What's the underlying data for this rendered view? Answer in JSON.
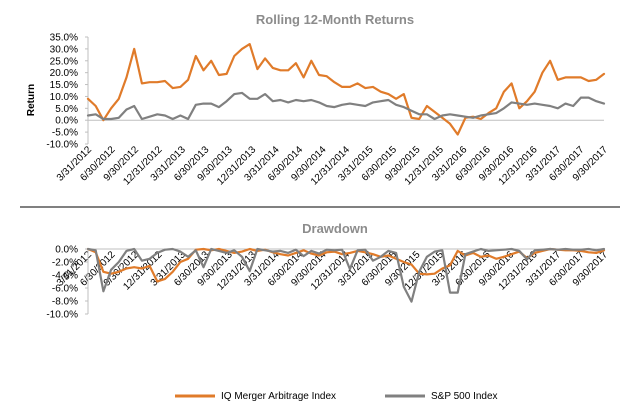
{
  "chart_data": [
    {
      "type": "line",
      "title": "Rolling 12-Month Returns",
      "ylabel": "Return",
      "ylim": [
        -10,
        35
      ],
      "yticks": [
        "35.0%",
        "30.0%",
        "25.0%",
        "20.0%",
        "15.0%",
        "10.0%",
        "5.0%",
        "0.0%",
        "-5.0%",
        "-10.0%"
      ],
      "ytick_values": [
        35,
        30,
        25,
        20,
        15,
        10,
        5,
        0,
        -5,
        -10
      ],
      "x_tick_labels": [
        "3/31/2012",
        "6/30/2012",
        "9/30/2012",
        "12/31/2012",
        "3/31/2013",
        "6/30/2013",
        "9/30/2013",
        "12/31/2013",
        "3/31/2014",
        "6/30/2014",
        "9/30/2014",
        "12/31/2014",
        "3/31/2015",
        "6/30/2015",
        "9/30/2015",
        "12/31/2015",
        "3/31/2016",
        "6/30/2016",
        "9/30/2016",
        "12/31/2016",
        "3/31/2017",
        "6/30/2017",
        "9/30/2017"
      ],
      "series": [
        {
          "name": "IQ Merger Arbitrage Index",
          "color": "#e07b2a",
          "values": [
            9,
            6,
            0,
            5,
            9,
            18,
            30,
            15.5,
            16,
            16,
            16.5,
            13.5,
            14,
            17,
            27,
            21,
            25,
            19,
            19.5,
            27,
            30,
            32,
            21.5,
            26,
            22,
            21,
            21,
            24,
            18,
            25,
            19,
            18.5,
            16,
            14,
            14,
            15.5,
            13.5,
            14,
            12,
            11,
            9,
            11,
            1,
            0.5,
            6,
            3.5,
            1,
            -1.5,
            -6,
            1,
            1.5,
            0.5,
            3,
            5,
            12,
            15.5,
            5,
            8,
            12,
            20,
            25,
            17,
            18,
            18,
            18,
            16.5,
            17,
            19.5
          ]
        },
        {
          "name": "S&P 500 Index",
          "color": "#808080",
          "values": [
            2,
            2.5,
            0.5,
            0.5,
            1,
            4.5,
            6,
            0.5,
            1.5,
            2.5,
            2,
            0.5,
            2,
            0.5,
            6.5,
            7,
            7,
            5.5,
            8,
            11,
            11.5,
            9,
            9,
            11,
            8,
            8.5,
            7.5,
            8.5,
            8,
            8.5,
            7.5,
            6,
            5.5,
            6.5,
            7,
            6.5,
            6,
            7.5,
            8,
            8.5,
            6.5,
            5.5,
            4,
            2.5,
            2.5,
            0.5,
            2,
            2.5,
            2,
            1.5,
            1,
            2,
            2.5,
            3,
            5,
            7.5,
            7,
            6.5,
            7,
            6.5,
            6,
            5,
            7,
            6,
            9.5,
            9.5,
            8,
            7
          ]
        }
      ]
    },
    {
      "type": "line",
      "title": "Drawdown",
      "ylim": [
        -10,
        0
      ],
      "yticks": [
        "0.0%",
        "-2.0%",
        "-4.0%",
        "-6.0%",
        "-8.0%",
        "-10.0%"
      ],
      "ytick_values": [
        0,
        -2,
        -4,
        -6,
        -8,
        -10
      ],
      "x_tick_labels": [
        "3/31/2012",
        "6/30/2012",
        "9/30/2012",
        "12/31/2012",
        "3/31/2013",
        "6/30/2013",
        "9/30/2013",
        "12/31/2013",
        "3/31/2014",
        "6/30/2014",
        "9/30/2014",
        "12/31/2014",
        "3/31/2015",
        "6/30/2015",
        "9/30/2015",
        "12/31/2015",
        "3/31/2016",
        "6/30/2016",
        "9/30/2016",
        "12/31/2016",
        "3/31/2017",
        "6/30/2017",
        "9/30/2017"
      ],
      "series": [
        {
          "name": "IQ Merger Arbitrage Index",
          "color": "#e07b2a",
          "values": [
            0,
            -0.5,
            -3.5,
            -3.8,
            -3.5,
            -3,
            -2.8,
            -3,
            -2.6,
            -5,
            -4.6,
            -3.5,
            -2,
            -1.5,
            -0.1,
            0,
            -0.2,
            0,
            -0.3,
            -0.6,
            -0.4,
            0,
            -0.3,
            -0.1,
            -0.5,
            -0.8,
            -1,
            -0.6,
            -0.2,
            -0.7,
            -1,
            -0.5,
            -0.4,
            -0.8,
            -0.6,
            -0.3,
            -0.5,
            -0.8,
            -1.2,
            -1,
            -1.5,
            -2,
            -2.4,
            -3.8,
            -3.9,
            -3.8,
            -3,
            -2.5,
            -0.3,
            -1,
            -0.6,
            -1.2,
            -1,
            -1.5,
            -1.2,
            -0.8,
            -0.4,
            -1.4,
            -0.6,
            -0.3,
            0,
            -0.1,
            -0.2,
            -0.2,
            -0.3,
            -0.5,
            -0.6,
            -0.2
          ]
        },
        {
          "name": "S&P 500 Index",
          "color": "#808080",
          "values": [
            0,
            -0.2,
            -6.5,
            -3.2,
            -2,
            -0.3,
            0,
            -1.8,
            -1.5,
            -0.6,
            -0.1,
            0,
            -0.4,
            -1.2,
            -0.2,
            -2.8,
            0,
            -0.3,
            -0.6,
            -0.2,
            -1.2,
            -3.4,
            0,
            -0.2,
            -0.4,
            -0.3,
            -0.6,
            -0.1,
            -1.1,
            -0.3,
            -0.7,
            -0.1,
            -0.2,
            -0.1,
            -3.1,
            -0.2,
            -0.1,
            -1.8,
            -1.2,
            -0.3,
            -0.6,
            -5.8,
            -8.1,
            -3.5,
            -1.2,
            -0.4,
            -0.2,
            -6.7,
            -6.7,
            -0.8,
            -0.4,
            0,
            -0.3,
            -0.2,
            -0.1,
            0,
            -0.3,
            -1.6,
            -0.2,
            -0.1,
            0,
            -0.1,
            0,
            -0.1,
            -0.1,
            0,
            -0.2,
            0
          ]
        }
      ]
    }
  ],
  "legend": [
    {
      "label": "IQ Merger Arbitrage Index",
      "color": "#e07b2a"
    },
    {
      "label": "S&P 500 Index",
      "color": "#808080"
    }
  ]
}
